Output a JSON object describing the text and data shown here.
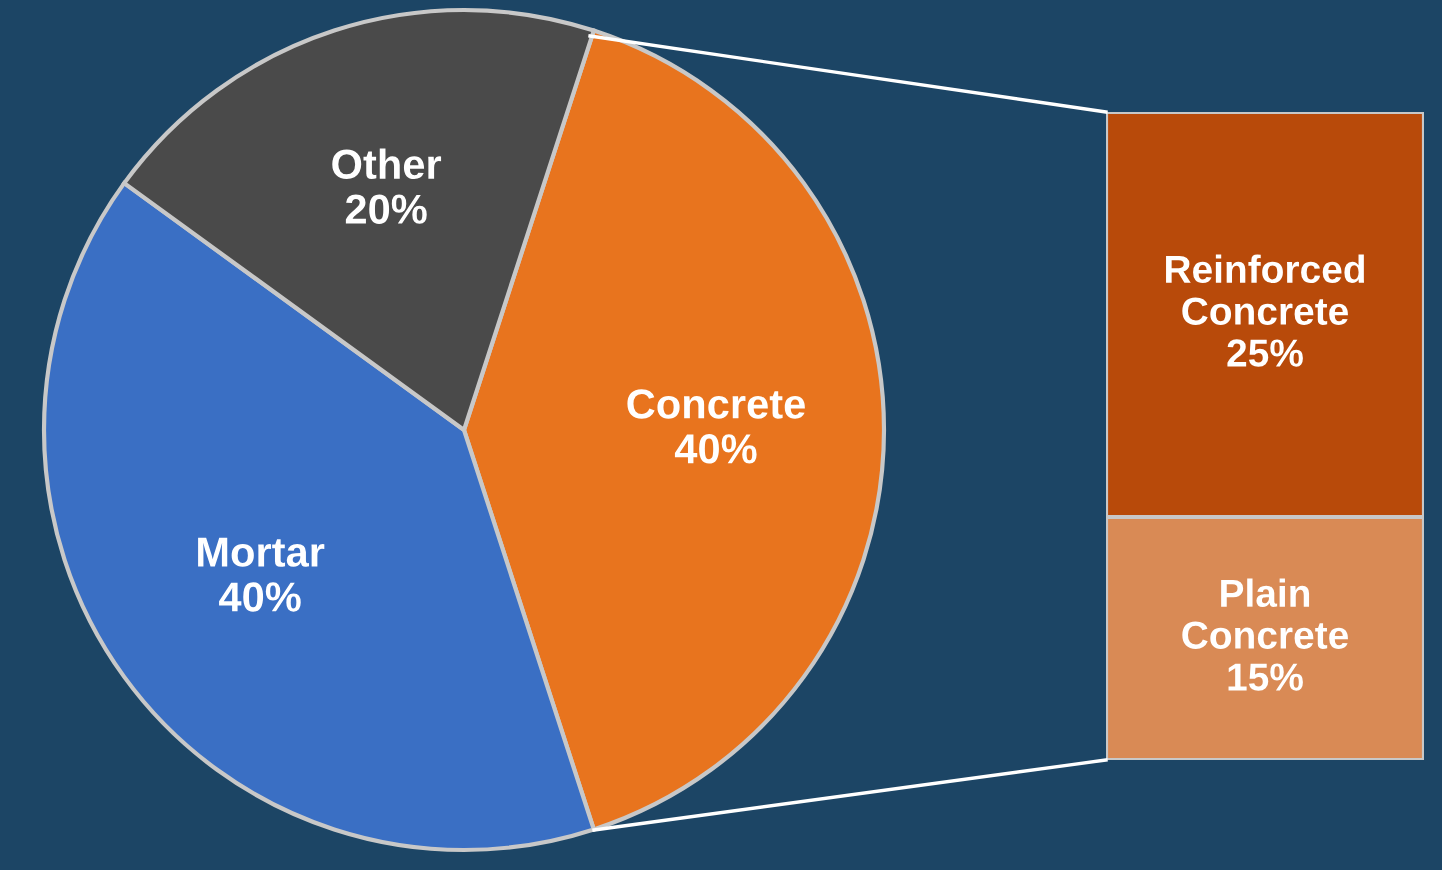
{
  "chart_data": [
    {
      "type": "pie",
      "categories": [
        "Concrete",
        "Mortar",
        "Other"
      ],
      "values": [
        40,
        40,
        20
      ],
      "colors": [
        "#e8741e",
        "#3a6fc4",
        "#4a4a4a"
      ],
      "value_labels": [
        "40%",
        "40%",
        "20%"
      ]
    },
    {
      "type": "bar",
      "stacked": true,
      "categories": [
        null
      ],
      "series": [
        {
          "name": "Plain Concrete",
          "color": "#d98a55",
          "values": [
            15
          ],
          "value_labels": [
            "15%"
          ]
        },
        {
          "name": "Reinforced Concrete",
          "color": "#b84a0a",
          "values": [
            25
          ],
          "value_labels": [
            "25%"
          ]
        }
      ]
    }
  ]
}
